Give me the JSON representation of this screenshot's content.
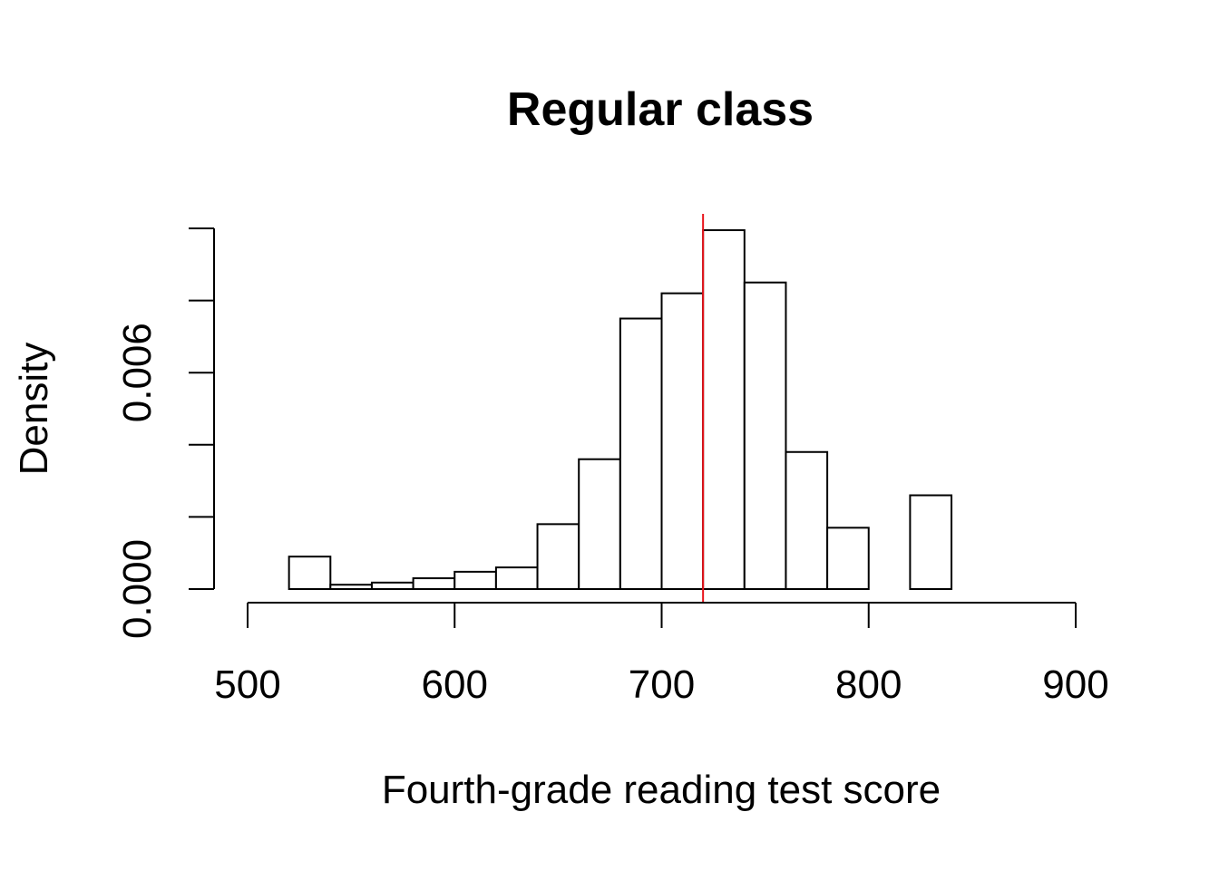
{
  "chart_data": {
    "type": "bar",
    "subtype": "histogram",
    "title": "Regular class",
    "xlabel": "Fourth-grade reading test score",
    "ylabel": "Density",
    "xlim": [
      500,
      900
    ],
    "ylim": [
      0,
      0.01
    ],
    "x_ticks": [
      500,
      600,
      700,
      800,
      900
    ],
    "x_tick_labels": [
      "500",
      "600",
      "700",
      "800",
      "900"
    ],
    "y_ticks": [
      0.0,
      0.002,
      0.004,
      0.006,
      0.008,
      0.01
    ],
    "y_tick_labels": [
      "0.000",
      "",
      "",
      "0.006",
      "",
      ""
    ],
    "bins": [
      {
        "start": 520,
        "end": 540,
        "density": 0.0009
      },
      {
        "start": 540,
        "end": 560,
        "density": 0.00012
      },
      {
        "start": 560,
        "end": 580,
        "density": 0.00018
      },
      {
        "start": 580,
        "end": 600,
        "density": 0.0003
      },
      {
        "start": 600,
        "end": 620,
        "density": 0.00048
      },
      {
        "start": 620,
        "end": 640,
        "density": 0.0006
      },
      {
        "start": 640,
        "end": 660,
        "density": 0.0018
      },
      {
        "start": 660,
        "end": 680,
        "density": 0.0036
      },
      {
        "start": 680,
        "end": 700,
        "density": 0.0075
      },
      {
        "start": 700,
        "end": 720,
        "density": 0.0082
      },
      {
        "start": 720,
        "end": 740,
        "density": 0.00995
      },
      {
        "start": 740,
        "end": 760,
        "density": 0.0085
      },
      {
        "start": 760,
        "end": 780,
        "density": 0.0038
      },
      {
        "start": 780,
        "end": 800,
        "density": 0.0017
      },
      {
        "start": 800,
        "end": 820,
        "density": 0.0
      },
      {
        "start": 820,
        "end": 840,
        "density": 0.0026
      }
    ],
    "reference_line": {
      "x": 720,
      "color": "#e8141b"
    },
    "grid": false
  }
}
